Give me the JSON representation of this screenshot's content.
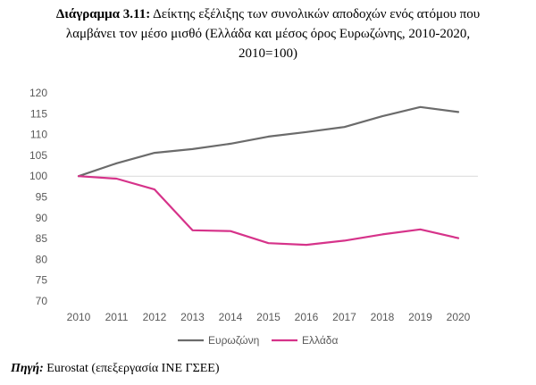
{
  "caption": {
    "label": "Διάγραμμα 3.11:",
    "line1": "Δείκτης εξέλιξης των συνολικών αποδοχών ενός ατόμου που",
    "line2": "λαμβάνει τον μέσο μισθό (Ελλάδα και μέσος όρος Ευρωζώνης, 2010-2020,",
    "line3": "2010=100)"
  },
  "source": {
    "label": "Πηγή:",
    "text": " Eurostat (επεξεργασία ΙΝΕ ΓΣΕΕ)"
  },
  "chart_data": {
    "type": "line",
    "title": "Δείκτης εξέλιξης των συνολικών αποδοχών ενός ατόμου που λαμβάνει τον μέσο μισθό (Ελλάδα και μέσος όρος Ευρωζώνης, 2010-2020, 2010=100)",
    "x": [
      "2010",
      "2011",
      "2012",
      "2013",
      "2014",
      "2015",
      "2016",
      "2017",
      "2018",
      "2019",
      "2020"
    ],
    "series": [
      {
        "name": "Ευρωζώνη",
        "color": "#6b6b6b",
        "values": [
          100,
          103.1,
          105.6,
          106.5,
          107.8,
          109.5,
          110.6,
          111.8,
          114.4,
          116.6,
          115.4
        ]
      },
      {
        "name": "Ελλάδα",
        "color": "#d6338a",
        "values": [
          100,
          99.4,
          96.8,
          87.0,
          86.8,
          83.9,
          83.5,
          84.5,
          86.0,
          87.2,
          85.1
        ]
      }
    ],
    "yticks": [
      "70",
      "75",
      "80",
      "85",
      "90",
      "95",
      "100",
      "105",
      "110",
      "115",
      "120"
    ],
    "ylim": [
      70,
      120
    ],
    "reference_line": 100,
    "grid": false,
    "xlabel": "",
    "ylabel": "",
    "legend_position": "bottom"
  }
}
